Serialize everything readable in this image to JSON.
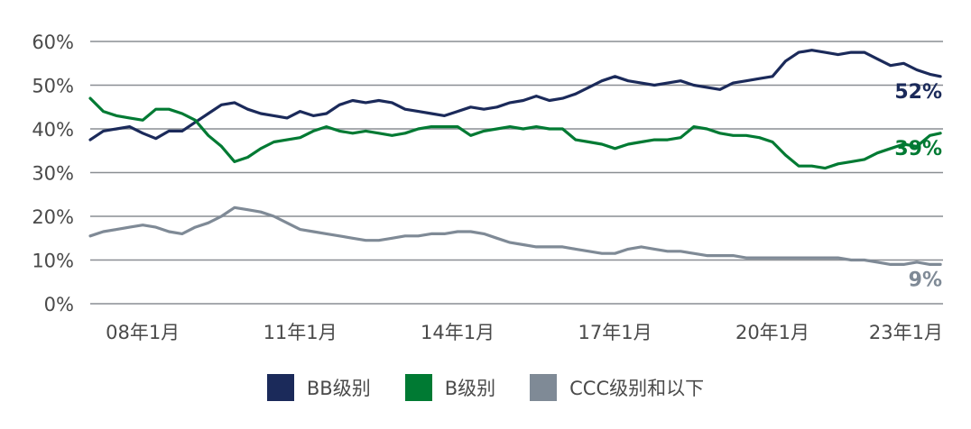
{
  "chart_data": {
    "type": "line",
    "title": "",
    "xlabel": "",
    "ylabel": "",
    "x_range": [
      2007.0,
      2023.25
    ],
    "ylim": [
      0,
      60
    ],
    "y_ticks": [
      0,
      10,
      20,
      30,
      40,
      50,
      60
    ],
    "y_tick_labels": [
      "0%",
      "10%",
      "20%",
      "30%",
      "40%",
      "50%",
      "60%"
    ],
    "x_ticks": [
      2008,
      2011,
      2014,
      2017,
      2020,
      2023
    ],
    "x_tick_labels": [
      "08年1月",
      "11年1月",
      "14年1月",
      "17年1月",
      "20年1月",
      "23年1月"
    ],
    "grid": "horizontal",
    "legend_position": "bottom",
    "series": [
      {
        "name": "BB级别",
        "color": "#1b2a5a",
        "end_label": "52%",
        "x": [
          2007.0,
          2007.25,
          2007.5,
          2007.75,
          2008.0,
          2008.25,
          2008.5,
          2008.75,
          2009.0,
          2009.25,
          2009.5,
          2009.75,
          2010.0,
          2010.25,
          2010.5,
          2010.75,
          2011.0,
          2011.25,
          2011.5,
          2011.75,
          2012.0,
          2012.25,
          2012.5,
          2012.75,
          2013.0,
          2013.25,
          2013.5,
          2013.75,
          2014.0,
          2014.25,
          2014.5,
          2014.75,
          2015.0,
          2015.25,
          2015.5,
          2015.75,
          2016.0,
          2016.25,
          2016.5,
          2016.75,
          2017.0,
          2017.25,
          2017.5,
          2017.75,
          2018.0,
          2018.25,
          2018.5,
          2018.75,
          2019.0,
          2019.25,
          2019.5,
          2019.75,
          2020.0,
          2020.25,
          2020.5,
          2020.75,
          2021.0,
          2021.25,
          2021.5,
          2021.75,
          2022.0,
          2022.25,
          2022.5,
          2022.75,
          2023.0,
          2023.2
        ],
        "values": [
          37.5,
          39.5,
          40.0,
          40.5,
          39.0,
          37.8,
          39.5,
          39.5,
          41.5,
          43.5,
          45.5,
          46.0,
          44.5,
          43.5,
          43.0,
          42.5,
          44.0,
          43.0,
          43.5,
          45.5,
          46.5,
          46.0,
          46.5,
          46.0,
          44.5,
          44.0,
          43.5,
          43.0,
          44.0,
          45.0,
          44.5,
          45.0,
          46.0,
          46.5,
          47.5,
          46.5,
          47.0,
          48.0,
          49.5,
          51.0,
          52.0,
          51.0,
          50.5,
          50.0,
          50.5,
          51.0,
          50.0,
          49.5,
          49.0,
          50.5,
          51.0,
          51.5,
          52.0,
          55.5,
          57.5,
          58.0,
          57.5,
          57.0,
          57.5,
          57.5,
          56.0,
          54.5,
          55.0,
          53.5,
          52.5,
          52.0
        ]
      },
      {
        "name": "B级别",
        "color": "#007a33",
        "end_label": "39%",
        "x": [
          2007.0,
          2007.25,
          2007.5,
          2007.75,
          2008.0,
          2008.25,
          2008.5,
          2008.75,
          2009.0,
          2009.25,
          2009.5,
          2009.75,
          2010.0,
          2010.25,
          2010.5,
          2010.75,
          2011.0,
          2011.25,
          2011.5,
          2011.75,
          2012.0,
          2012.25,
          2012.5,
          2012.75,
          2013.0,
          2013.25,
          2013.5,
          2013.75,
          2014.0,
          2014.25,
          2014.5,
          2014.75,
          2015.0,
          2015.25,
          2015.5,
          2015.75,
          2016.0,
          2016.25,
          2016.5,
          2016.75,
          2017.0,
          2017.25,
          2017.5,
          2017.75,
          2018.0,
          2018.25,
          2018.5,
          2018.75,
          2019.0,
          2019.25,
          2019.5,
          2019.75,
          2020.0,
          2020.25,
          2020.5,
          2020.75,
          2021.0,
          2021.25,
          2021.5,
          2021.75,
          2022.0,
          2022.25,
          2022.5,
          2022.75,
          2023.0,
          2023.2
        ],
        "values": [
          47.0,
          44.0,
          43.0,
          42.5,
          42.0,
          44.5,
          44.5,
          43.5,
          42.0,
          38.5,
          36.0,
          32.5,
          33.5,
          35.5,
          37.0,
          37.5,
          38.0,
          39.5,
          40.5,
          39.5,
          39.0,
          39.5,
          39.0,
          38.5,
          39.0,
          40.0,
          40.5,
          40.5,
          40.5,
          38.5,
          39.5,
          40.0,
          40.5,
          40.0,
          40.5,
          40.0,
          40.0,
          37.5,
          37.0,
          36.5,
          35.5,
          36.5,
          37.0,
          37.5,
          37.5,
          38.0,
          40.5,
          40.0,
          39.0,
          38.5,
          38.5,
          38.0,
          37.0,
          34.0,
          31.5,
          31.5,
          31.0,
          32.0,
          32.5,
          33.0,
          34.5,
          35.5,
          36.5,
          36.0,
          38.5,
          39.0
        ]
      },
      {
        "name": "CCC级别和以下",
        "color": "#7f8a96",
        "end_label": "9%",
        "x": [
          2007.0,
          2007.25,
          2007.5,
          2007.75,
          2008.0,
          2008.25,
          2008.5,
          2008.75,
          2009.0,
          2009.25,
          2009.5,
          2009.75,
          2010.0,
          2010.25,
          2010.5,
          2010.75,
          2011.0,
          2011.25,
          2011.5,
          2011.75,
          2012.0,
          2012.25,
          2012.5,
          2012.75,
          2013.0,
          2013.25,
          2013.5,
          2013.75,
          2014.0,
          2014.25,
          2014.5,
          2014.75,
          2015.0,
          2015.25,
          2015.5,
          2015.75,
          2016.0,
          2016.25,
          2016.5,
          2016.75,
          2017.0,
          2017.25,
          2017.5,
          2017.75,
          2018.0,
          2018.25,
          2018.5,
          2018.75,
          2019.0,
          2019.25,
          2019.5,
          2019.75,
          2020.0,
          2020.25,
          2020.5,
          2020.75,
          2021.0,
          2021.25,
          2021.5,
          2021.75,
          2022.0,
          2022.25,
          2022.5,
          2022.75,
          2023.0,
          2023.2
        ],
        "values": [
          15.5,
          16.5,
          17.0,
          17.5,
          18.0,
          17.5,
          16.5,
          16.0,
          17.5,
          18.5,
          20.0,
          22.0,
          21.5,
          21.0,
          20.0,
          18.5,
          17.0,
          16.5,
          16.0,
          15.5,
          15.0,
          14.5,
          14.5,
          15.0,
          15.5,
          15.5,
          16.0,
          16.0,
          16.5,
          16.5,
          16.0,
          15.0,
          14.0,
          13.5,
          13.0,
          13.0,
          13.0,
          12.5,
          12.0,
          11.5,
          11.5,
          12.5,
          13.0,
          12.5,
          12.0,
          12.0,
          11.5,
          11.0,
          11.0,
          11.0,
          10.5,
          10.5,
          10.5,
          10.5,
          10.5,
          10.5,
          10.5,
          10.5,
          10.0,
          10.0,
          9.5,
          9.0,
          9.0,
          9.5,
          9.0,
          9.0
        ]
      }
    ]
  }
}
